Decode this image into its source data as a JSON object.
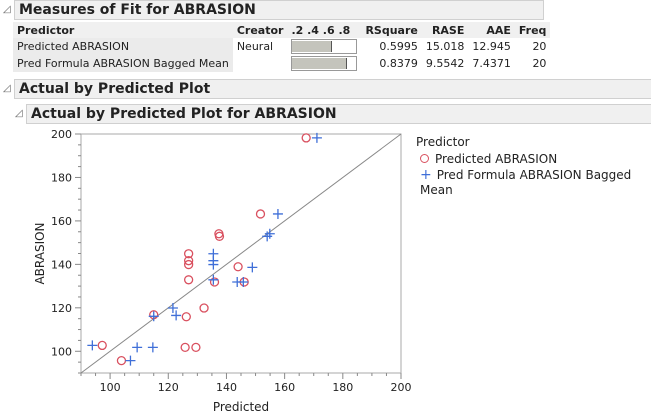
{
  "sections": {
    "fit": "Measures of Fit for ABRASION",
    "avp": "Actual by Predicted Plot",
    "avp_sub": "Actual by Predicted Plot for ABRASION"
  },
  "table": {
    "headers": [
      "Predictor",
      "Creator",
      ".2 .4 .6 .8",
      "RSquare",
      "RASE",
      "AAE",
      "Freq"
    ],
    "rows": [
      {
        "predictor": "Predicted ABRASION",
        "creator": "Neural",
        "rsquare": "0.5995",
        "rase": "15.018",
        "aae": "12.945",
        "freq": "20",
        "bar": 0.5995
      },
      {
        "predictor": "Pred Formula ABRASION Bagged Mean",
        "creator": "",
        "rsquare": "0.8379",
        "rase": "9.5542",
        "aae": "7.4371",
        "freq": "20",
        "bar": 0.8379
      }
    ]
  },
  "chart_data": {
    "type": "scatter",
    "xlabel": "Predicted",
    "ylabel": "ABRASION",
    "xlim": [
      90,
      200
    ],
    "ylim": [
      90,
      200
    ],
    "xticks": [
      "100",
      "120",
      "140",
      "160",
      "180",
      "200"
    ],
    "yticks": [
      "100",
      "120",
      "140",
      "160",
      "180",
      "200"
    ],
    "legend_title": "Predictor",
    "legend_placement": "right",
    "reference_line": "y=x",
    "series": [
      {
        "name": "Predicted ABRASION",
        "marker": "circle",
        "color": "#d9505f",
        "points": [
          [
            167.4,
            198.2
          ],
          [
            151.7,
            163.2
          ],
          [
            137.4,
            154.1
          ],
          [
            137.6,
            152.9
          ],
          [
            127,
            144.9
          ],
          [
            127,
            141.7
          ],
          [
            127,
            139.9
          ],
          [
            127,
            132.9
          ],
          [
            144,
            138.9
          ],
          [
            135.9,
            131.9
          ],
          [
            146.1,
            131.9
          ],
          [
            132.3,
            119.9
          ],
          [
            115,
            116.8
          ],
          [
            126.2,
            115.9
          ],
          [
            97.3,
            102.7
          ],
          [
            125.8,
            101.8
          ],
          [
            129.5,
            101.8
          ],
          [
            103.9,
            95.7
          ]
        ]
      },
      {
        "name": "Pred Formula ABRASION Bagged Mean",
        "marker": "plus",
        "color": "#3f6fd8",
        "points": [
          [
            171.1,
            198.2
          ],
          [
            157.7,
            163.2
          ],
          [
            154.9,
            154.1
          ],
          [
            154,
            152.9
          ],
          [
            135.5,
            144.9
          ],
          [
            135.5,
            141.7
          ],
          [
            135.5,
            139.9
          ],
          [
            135.5,
            132.9
          ],
          [
            148.9,
            138.6
          ],
          [
            143.7,
            131.9
          ],
          [
            145.8,
            131.9
          ],
          [
            121.6,
            119.9
          ],
          [
            122.7,
            116.5
          ],
          [
            115,
            116.1
          ],
          [
            93.9,
            102.7
          ],
          [
            109.3,
            101.8
          ],
          [
            114.7,
            101.8
          ],
          [
            107,
            95.7
          ]
        ]
      }
    ]
  }
}
